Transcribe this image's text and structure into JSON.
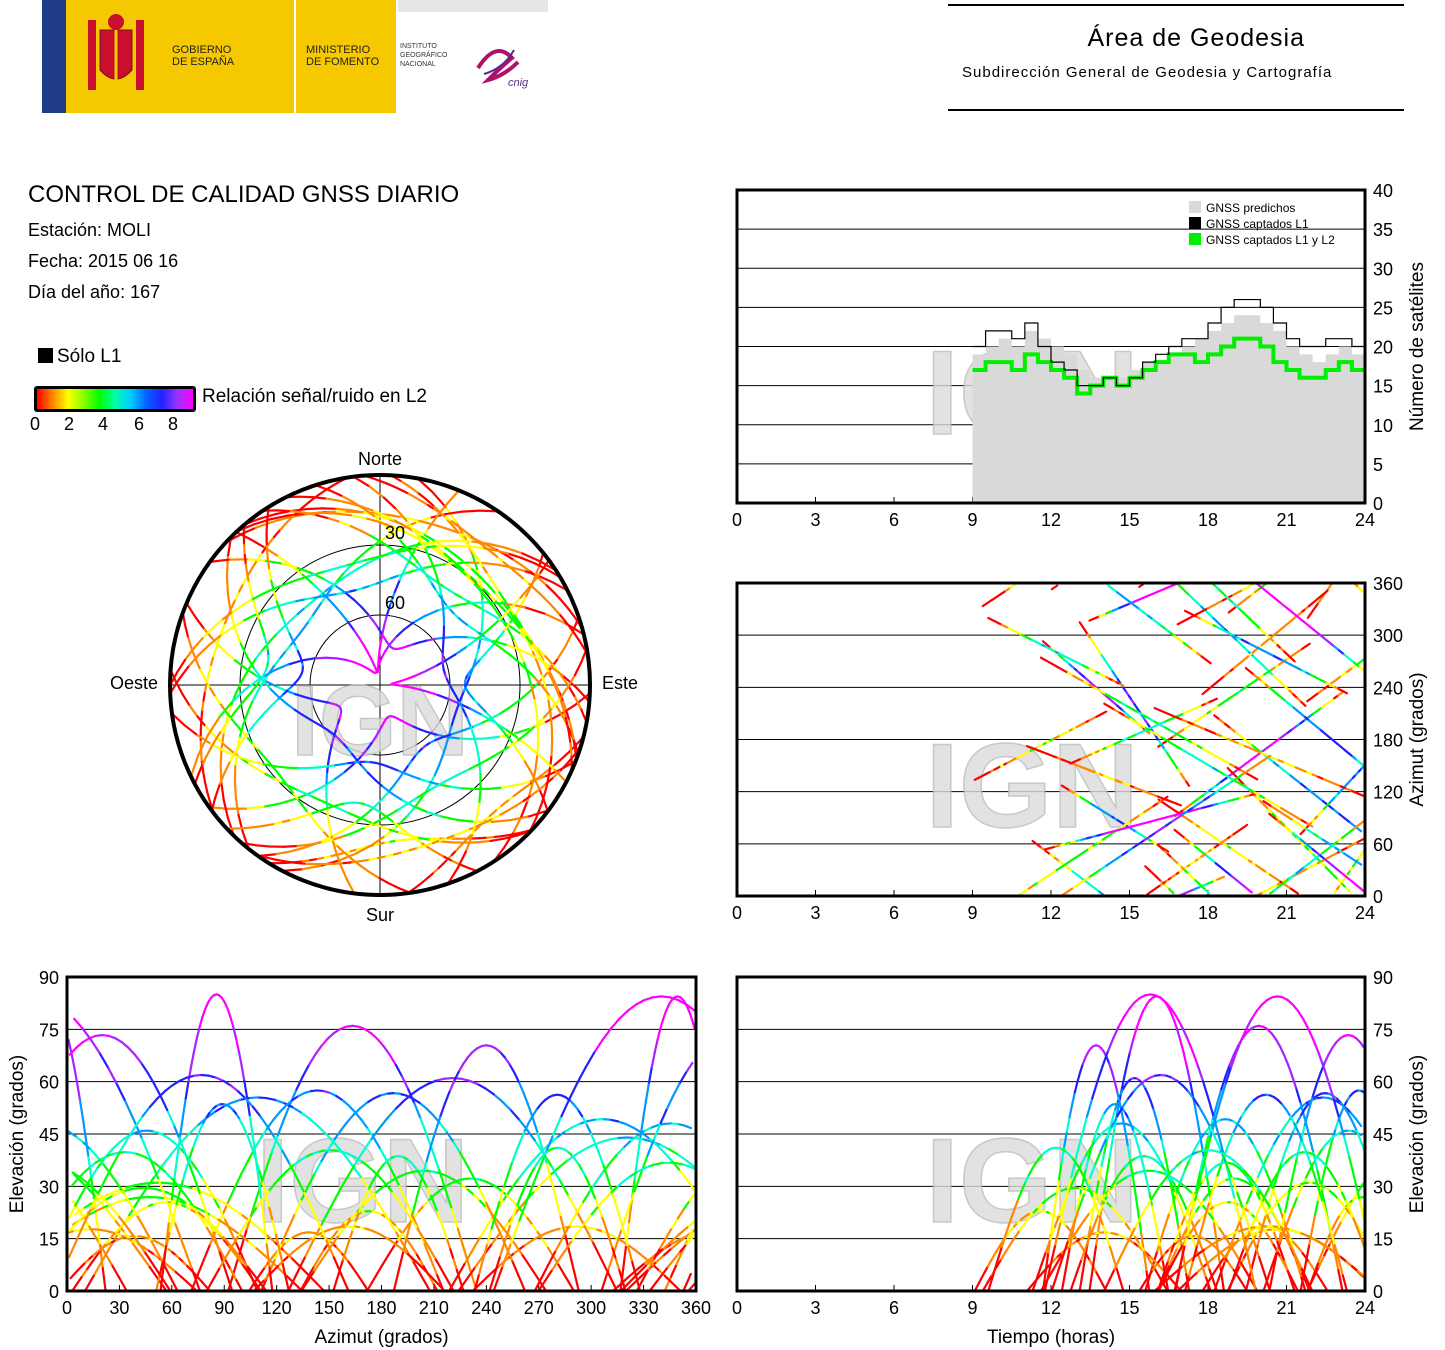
{
  "header": {
    "gov_label_1": "GOBIERNO",
    "gov_label_2": "DE ESPAÑA",
    "min_label_1": "MINISTERIO",
    "min_label_2": "DE FOMENTO",
    "ign_label_1": "INSTITUTO",
    "ign_label_2": "GEOGRÁFICO",
    "ign_label_3": "NACIONAL",
    "cnig_label": "cnig",
    "area_title": "Área de Geodesia",
    "area_subtitle": "Subdirección General de Geodesia y Cartografía"
  },
  "report": {
    "title": "CONTROL DE CALIDAD GNSS DIARIO",
    "station": "Estación: MOLI",
    "date": "Fecha: 2015 06 16",
    "doy": "Día del año: 167"
  },
  "legend": {
    "solo_l1": "Sólo L1",
    "snr_label": "Relación señal/ruido en L2",
    "snr_ticks": [
      "0",
      "2",
      "4",
      "6",
      "8"
    ]
  },
  "watermark": "IGN",
  "colors": {
    "predicted": "#d9d9d9",
    "captured_l1": "#000000",
    "captured_l1_l2": "#00ee00",
    "snr_scale": [
      "#ff0000",
      "#ff8800",
      "#ffff00",
      "#00ff00",
      "#00ffcc",
      "#0099ff",
      "#2222ff",
      "#aa22ff",
      "#ff00ff"
    ]
  },
  "chart_data": [
    {
      "id": "satellites",
      "type": "line",
      "ylabel": "Número de satélites",
      "xlim": [
        0,
        24
      ],
      "ylim": [
        0,
        40
      ],
      "xticks": [
        0,
        3,
        6,
        9,
        12,
        15,
        18,
        21,
        24
      ],
      "yticks": [
        0,
        5,
        10,
        15,
        20,
        25,
        30,
        35,
        40
      ],
      "grid": true,
      "legend_position": "top-right",
      "series": [
        {
          "name": "GNSS predichos",
          "x": [
            9,
            9.5,
            10,
            10.5,
            11,
            11.5,
            12,
            12.5,
            13,
            13.5,
            14,
            14.5,
            15,
            15.5,
            16,
            16.5,
            17,
            17.5,
            18,
            18.5,
            19,
            19.5,
            20,
            20.5,
            21,
            21.5,
            22,
            22.5,
            23,
            23.5,
            24
          ],
          "values": [
            19,
            20,
            21,
            20,
            22,
            21,
            20,
            19,
            17,
            16,
            16,
            16,
            17,
            18,
            18,
            19,
            20,
            21,
            22,
            23,
            24,
            24,
            23,
            22,
            20,
            19,
            18,
            19,
            20,
            19,
            19
          ]
        },
        {
          "name": "GNSS captados L1",
          "x": [
            9,
            9.5,
            10,
            10.5,
            11,
            11.5,
            12,
            12.5,
            13,
            13.5,
            14,
            14.5,
            15,
            15.5,
            16,
            16.5,
            17,
            17.5,
            18,
            18.5,
            19,
            19.5,
            20,
            20.5,
            21,
            21.5,
            22,
            22.5,
            23,
            23.5,
            24
          ],
          "values": [
            20,
            22,
            22,
            21,
            23,
            20,
            18,
            17,
            15,
            15,
            16,
            15,
            16,
            18,
            19,
            20,
            21,
            21,
            23,
            25,
            26,
            26,
            25,
            23,
            21,
            20,
            20,
            21,
            21,
            20,
            20
          ]
        },
        {
          "name": "GNSS captados L1 y L2",
          "x": [
            9,
            9.5,
            10,
            10.5,
            11,
            11.5,
            12,
            12.5,
            13,
            13.5,
            14,
            14.5,
            15,
            15.5,
            16,
            16.5,
            17,
            17.5,
            18,
            18.5,
            19,
            19.5,
            20,
            20.5,
            21,
            21.5,
            22,
            22.5,
            23,
            23.5,
            24
          ],
          "values": [
            17,
            18,
            18,
            17,
            19,
            18,
            17,
            16,
            14,
            15,
            16,
            15,
            16,
            17,
            18,
            19,
            19,
            18,
            19,
            20,
            21,
            21,
            20,
            18,
            17,
            16,
            16,
            17,
            18,
            17,
            17
          ]
        }
      ]
    },
    {
      "id": "azimuth_time",
      "type": "scatter",
      "ylabel": "Azimut (grados)",
      "xlim": [
        0,
        24
      ],
      "ylim": [
        0,
        360
      ],
      "xticks": [
        0,
        3,
        6,
        9,
        12,
        15,
        18,
        21,
        24
      ],
      "yticks": [
        0,
        60,
        120,
        180,
        240,
        300,
        360
      ],
      "grid": true
    },
    {
      "id": "skyplot",
      "type": "scatter",
      "labels": {
        "north": "Norte",
        "south": "Sur",
        "east": "Este",
        "west": "Oeste"
      },
      "elevation_rings": [
        "30",
        "60"
      ]
    },
    {
      "id": "elev_azimuth",
      "type": "scatter",
      "xlabel": "Azimut (grados)",
      "ylabel": "Elevación (grados)",
      "xlim": [
        0,
        360
      ],
      "ylim": [
        0,
        90
      ],
      "xticks": [
        0,
        30,
        60,
        90,
        120,
        150,
        180,
        210,
        240,
        270,
        300,
        330,
        360
      ],
      "yticks": [
        0,
        15,
        30,
        45,
        60,
        75,
        90
      ],
      "grid": true
    },
    {
      "id": "elev_time",
      "type": "scatter",
      "xlabel": "Tiempo (horas)",
      "ylabel": "Elevación (grados)",
      "xlim": [
        0,
        24
      ],
      "ylim": [
        0,
        90
      ],
      "xticks": [
        0,
        3,
        6,
        9,
        12,
        15,
        18,
        21,
        24
      ],
      "yticks": [
        0,
        15,
        30,
        45,
        60,
        75,
        90
      ],
      "grid": true
    }
  ]
}
